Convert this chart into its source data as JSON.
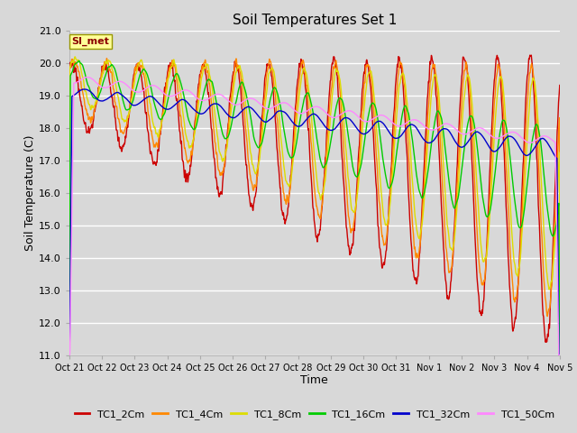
{
  "title": "Soil Temperatures Set 1",
  "xlabel": "Time",
  "ylabel": "Soil Temperature (C)",
  "annotation": "SI_met",
  "annotation_color": "#8B0000",
  "annotation_bg": "#FFFF99",
  "annotation_border": "#999900",
  "bg_color": "#D8D8D8",
  "ylim": [
    11.0,
    21.0
  ],
  "yticks": [
    11.0,
    12.0,
    13.0,
    14.0,
    15.0,
    16.0,
    17.0,
    18.0,
    19.0,
    20.0,
    21.0
  ],
  "xtick_labels": [
    "Oct 21",
    "Oct 22",
    "Oct 23",
    "Oct 24",
    "Oct 25",
    "Oct 26",
    "Oct 27",
    "Oct 28",
    "Oct 29",
    "Oct 30",
    "Oct 31",
    "Nov 1",
    "Nov 2",
    "Nov 3",
    "Nov 4",
    "Nov 5"
  ],
  "series": {
    "TC1_2Cm": {
      "color": "#CC0000"
    },
    "TC1_4Cm": {
      "color": "#FF8800"
    },
    "TC1_8Cm": {
      "color": "#DDDD00"
    },
    "TC1_16Cm": {
      "color": "#00CC00"
    },
    "TC1_32Cm": {
      "color": "#0000CC"
    },
    "TC1_50Cm": {
      "color": "#FF88FF"
    }
  },
  "lw": 1.0,
  "num_days": 15,
  "ppd": 144
}
